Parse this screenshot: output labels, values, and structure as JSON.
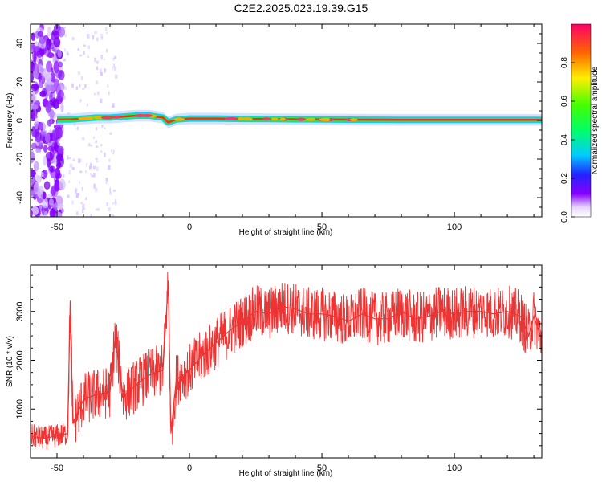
{
  "title": "C2E2.2025.023.19.39.G15",
  "chart_data": [
    {
      "type": "heatmap",
      "xlabel": "Height of straight line (km)",
      "ylabel": "Frequency (Hz)",
      "xlim": [
        -60,
        133
      ],
      "ylim": [
        -50,
        50
      ],
      "xticks": [
        "-50",
        "0",
        "50",
        "100"
      ],
      "xtick_values": [
        -50,
        0,
        50,
        100
      ],
      "yticks": [
        "-40",
        "-20",
        "0",
        "20",
        "40"
      ],
      "ytick_values": [
        -40,
        -20,
        0,
        20,
        40
      ],
      "colorbar": {
        "label": "Normalized spectral amplitude",
        "range": [
          0,
          1
        ],
        "ticks": [
          "0.0",
          "0.2",
          "0.4",
          "0.6",
          "0.8"
        ],
        "tick_values": [
          0.0,
          0.2,
          0.4,
          0.6,
          0.8
        ]
      },
      "ridge": {
        "x": [
          -50,
          -45,
          -40,
          -35,
          -30,
          -25,
          -20,
          -15,
          -10,
          -8,
          -5,
          0,
          10,
          20,
          30,
          40,
          50,
          60,
          80,
          100,
          120,
          133
        ],
        "y": [
          0.5,
          0.5,
          1.0,
          1.5,
          1.5,
          2.0,
          2.5,
          2.5,
          1.5,
          -1.0,
          0.5,
          1.0,
          1.0,
          0.8,
          0.7,
          0.6,
          0.5,
          0.4,
          0.3,
          0.3,
          0.3,
          0.3
        ]
      },
      "grid": false
    },
    {
      "type": "line",
      "xlabel": "Height of straight line (km)",
      "ylabel": "SNR (10 * v/v)",
      "xlim": [
        -60,
        133
      ],
      "ylim": [
        0,
        3950
      ],
      "xticks": [
        "-50",
        "0",
        "50",
        "100"
      ],
      "xtick_values": [
        -50,
        0,
        50,
        100
      ],
      "yticks": [
        "1000",
        "2000",
        "3000"
      ],
      "ytick_values": [
        1000,
        2000,
        3000
      ],
      "line_color": "#ee3333",
      "series": [
        {
          "x": [
            -60,
            -55,
            -50,
            -46,
            -45,
            -44,
            -40,
            -35,
            -30,
            -28,
            -25,
            -20,
            -15,
            -10,
            -8,
            -7,
            -5,
            0,
            5,
            10,
            15,
            20,
            25,
            30,
            35,
            40,
            45,
            50,
            55,
            60,
            65,
            70,
            75,
            80,
            85,
            90,
            95,
            100,
            105,
            110,
            115,
            120,
            125,
            128,
            130,
            133
          ],
          "y": [
            450,
            400,
            450,
            500,
            3200,
            700,
            1200,
            1300,
            1350,
            2500,
            1250,
            1500,
            1700,
            1800,
            3600,
            500,
            1600,
            1800,
            2100,
            2350,
            2600,
            2800,
            3000,
            2950,
            3100,
            3050,
            2950,
            2950,
            2900,
            2800,
            2950,
            2850,
            2850,
            3000,
            2850,
            2900,
            3000,
            2950,
            3000,
            3000,
            2950,
            3000,
            2900,
            2500,
            2900,
            2400
          ]
        }
      ],
      "grid": false
    }
  ]
}
